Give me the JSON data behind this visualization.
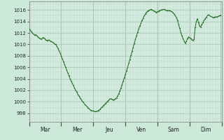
{
  "background_color": "#cce8d8",
  "plot_bg_color": "#d4ece0",
  "line_color": "#1a6e1a",
  "marker_color": "#1a6e1a",
  "grid_color_major": "#adc8b8",
  "grid_color_minor": "#bcd8c8",
  "ylim": [
    996.5,
    1017.5
  ],
  "yticks": [
    998,
    1000,
    1002,
    1004,
    1006,
    1008,
    1010,
    1012,
    1014,
    1016
  ],
  "day_labels": [
    "Mar",
    "Mer",
    "Jeu",
    "Ven",
    "Sam",
    "Dim"
  ],
  "num_days": 6,
  "pressure_data": [
    1012.7,
    1012.5,
    1012.2,
    1012.0,
    1011.8,
    1011.6,
    1011.7,
    1011.5,
    1011.3,
    1011.1,
    1011.0,
    1010.9,
    1011.1,
    1011.2,
    1011.0,
    1010.8,
    1010.7,
    1010.7,
    1010.8,
    1010.6,
    1010.5,
    1010.4,
    1010.3,
    1010.1,
    1010.0,
    1009.7,
    1009.3,
    1008.9,
    1008.5,
    1008.0,
    1007.5,
    1007.0,
    1006.5,
    1006.0,
    1005.5,
    1005.0,
    1004.5,
    1004.0,
    1003.6,
    1003.2,
    1002.8,
    1002.4,
    1002.0,
    1001.7,
    1001.3,
    1001.0,
    1000.7,
    1000.4,
    1000.1,
    999.9,
    999.6,
    999.4,
    999.2,
    999.0,
    998.8,
    998.6,
    998.5,
    998.4,
    998.4,
    998.3,
    998.3,
    998.3,
    998.4,
    998.5,
    998.7,
    998.9,
    999.1,
    999.3,
    999.5,
    999.7,
    999.9,
    1000.1,
    1000.3,
    1000.5,
    1000.5,
    1000.4,
    1000.3,
    1000.4,
    1000.5,
    1000.7,
    1001.0,
    1001.4,
    1001.9,
    1002.4,
    1003.0,
    1003.6,
    1004.2,
    1004.8,
    1005.4,
    1006.0,
    1006.7,
    1007.4,
    1008.1,
    1008.8,
    1009.5,
    1010.2,
    1010.9,
    1011.5,
    1012.1,
    1012.7,
    1013.2,
    1013.7,
    1014.2,
    1014.6,
    1015.0,
    1015.3,
    1015.6,
    1015.8,
    1015.9,
    1016.0,
    1016.1,
    1016.0,
    1015.9,
    1015.8,
    1015.7,
    1015.6,
    1015.7,
    1015.8,
    1015.9,
    1016.0,
    1016.0,
    1016.1,
    1016.1,
    1016.0,
    1015.9,
    1015.9,
    1015.9,
    1015.9,
    1015.8,
    1015.7,
    1015.5,
    1015.3,
    1015.0,
    1014.7,
    1014.2,
    1013.5,
    1012.8,
    1012.1,
    1011.5,
    1011.0,
    1010.6,
    1010.2,
    1010.5,
    1011.0,
    1011.3,
    1011.2,
    1011.0,
    1010.8,
    1010.7,
    1010.9,
    1013.0,
    1014.0,
    1014.5,
    1013.8,
    1013.2,
    1013.0,
    1013.5,
    1013.8,
    1014.2,
    1014.5,
    1014.7,
    1015.0,
    1015.2,
    1015.0,
    1014.9,
    1014.8,
    1014.7,
    1014.7,
    1014.8,
    1014.8,
    1014.8,
    1014.9,
    1015.0,
    1015.1
  ]
}
